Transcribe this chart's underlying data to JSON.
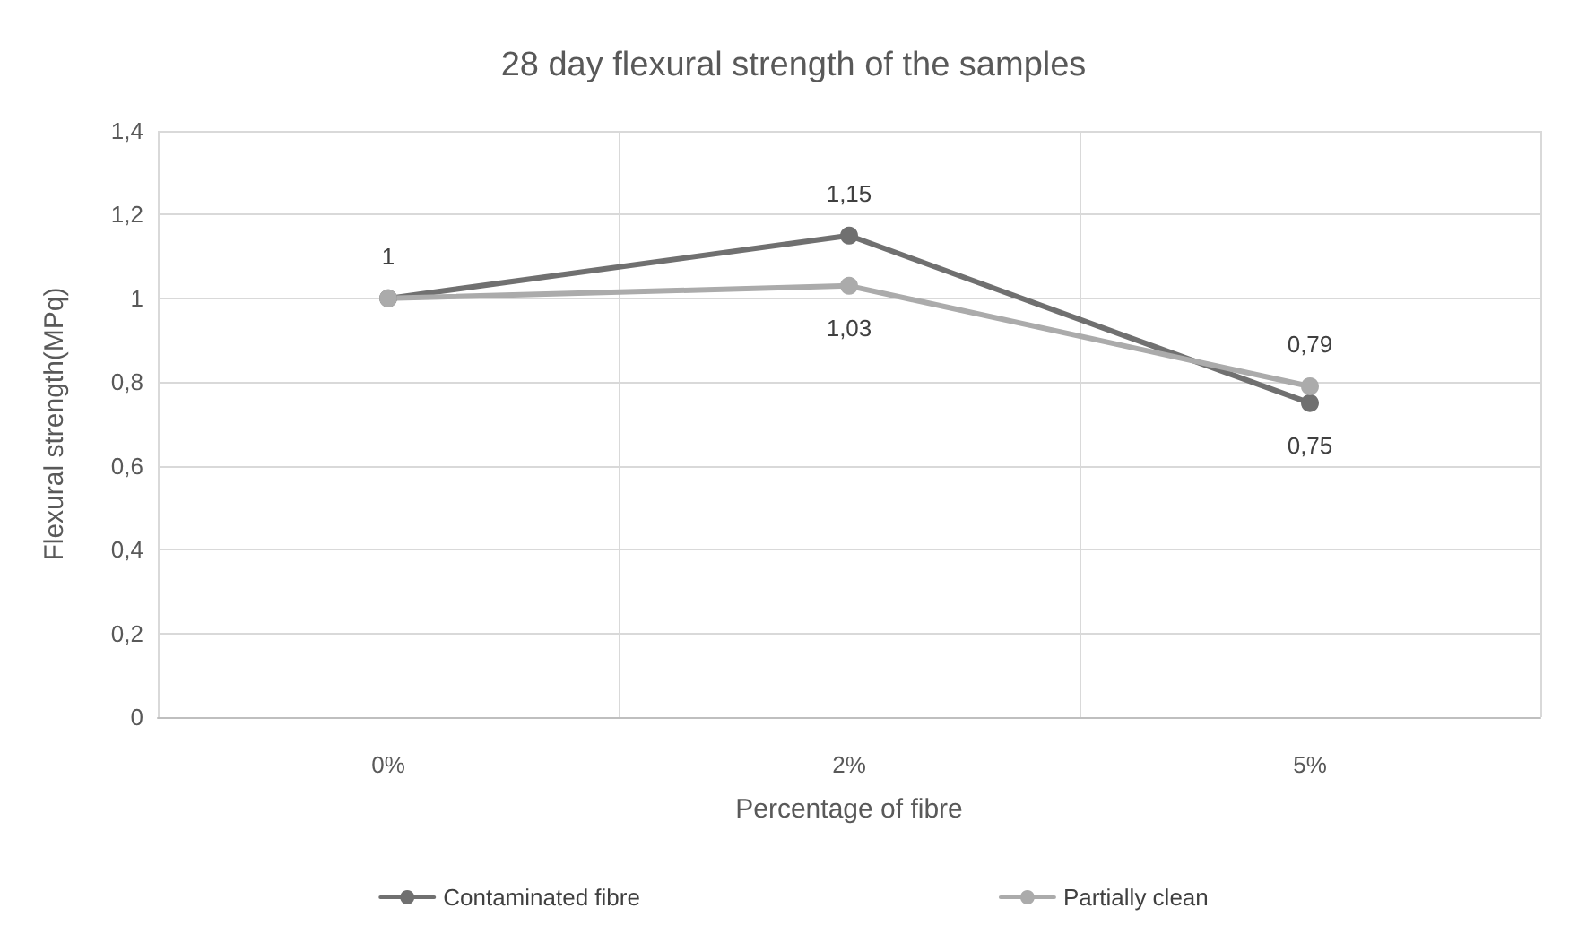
{
  "chart_data": {
    "type": "line",
    "title": "28 day flexural strength of the samples",
    "xlabel": "Percentage of fibre",
    "ylabel": "Flexural strength(MPq)",
    "categories": [
      "0%",
      "2%",
      "5%"
    ],
    "series": [
      {
        "name": "Contaminated fibre",
        "color": "#707070",
        "values": [
          1,
          1.15,
          0.75
        ],
        "value_labels": [
          "1",
          "1,15",
          "0,75"
        ]
      },
      {
        "name": "Partially clean",
        "color": "#ababab",
        "values": [
          1,
          1.03,
          0.79
        ],
        "value_labels": [
          null,
          "1,03",
          "0,79"
        ]
      }
    ],
    "ylim": [
      0,
      1.4
    ],
    "yticks": [
      {
        "value": 0,
        "label": "0"
      },
      {
        "value": 0.2,
        "label": "0,2"
      },
      {
        "value": 0.4,
        "label": "0,4"
      },
      {
        "value": 0.6,
        "label": "0,6"
      },
      {
        "value": 0.8,
        "label": "0,8"
      },
      {
        "value": 1,
        "label": "1"
      },
      {
        "value": 1.2,
        "label": "1,2"
      },
      {
        "value": 1.4,
        "label": "1,4"
      }
    ],
    "grid": true,
    "legend": "bottom",
    "marker": "circle",
    "line_style": "solid"
  }
}
